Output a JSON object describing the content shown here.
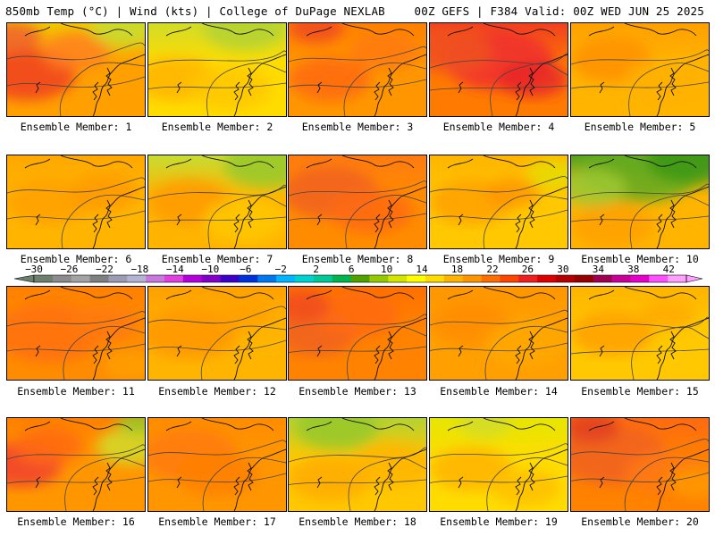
{
  "header": {
    "left": "850mb Temp (°C) | Wind (kts) | College of DuPage NEXLAB",
    "right": "00Z GEFS | F384 Valid: 00Z WED JUN 25 2025"
  },
  "colorbar": {
    "tick_labels": [
      "−30",
      "−26",
      "−22",
      "−18",
      "−14",
      "−10",
      "−6",
      "−2",
      "2",
      "6",
      "10",
      "14",
      "18",
      "22",
      "26",
      "30",
      "34",
      "38",
      "42"
    ],
    "colors": [
      "#6e7f6e",
      "#8c8c8c",
      "#a3a3a3",
      "#7f7f7f",
      "#9b9bb4",
      "#b4b4d2",
      "#c878dc",
      "#e040e0",
      "#b400dc",
      "#8200c8",
      "#3c00c8",
      "#0032dc",
      "#0078f0",
      "#00b4ff",
      "#00d2d2",
      "#00c896",
      "#00b450",
      "#50a000",
      "#96c800",
      "#d2e600",
      "#ffff00",
      "#ffdc00",
      "#ffb400",
      "#ff9600",
      "#ff6e00",
      "#ff4600",
      "#f01e1e",
      "#dc0000",
      "#b40000",
      "#960000",
      "#a00050",
      "#c80096",
      "#e600c8",
      "#ff50ff",
      "#ffa0ff"
    ]
  },
  "panels": [
    {
      "label": "Ensemble Member: 1",
      "base": "#ffa000",
      "north": "#f0c800",
      "hot": [
        [
          0.15,
          0.55,
          0.35,
          "#f04020"
        ],
        [
          0.05,
          0.15,
          0.2,
          "#f06030"
        ],
        [
          0.5,
          0.3,
          0.25,
          "#ff8020"
        ]
      ],
      "cool": [
        [
          0.85,
          0.05,
          0.25,
          "#c8dc32"
        ]
      ]
    },
    {
      "label": "Ensemble Member: 2",
      "base": "#ffdc00",
      "north": "#d2dc28",
      "hot": [
        [
          0.2,
          0.6,
          0.3,
          "#ffb400"
        ],
        [
          0.6,
          0.7,
          0.3,
          "#ffc800"
        ]
      ],
      "cool": [
        [
          0.7,
          0.05,
          0.3,
          "#b4d232"
        ]
      ]
    },
    {
      "label": "Ensemble Member: 3",
      "base": "#ff9600",
      "north": "#ff8000",
      "hot": [
        [
          0.3,
          0.6,
          0.3,
          "#ff6a10"
        ],
        [
          0.7,
          0.3,
          0.25,
          "#ff7a10"
        ],
        [
          0.2,
          0.05,
          0.2,
          "#f04a20"
        ]
      ],
      "cool": []
    },
    {
      "label": "Ensemble Member: 4",
      "base": "#ff7a00",
      "north": "#f04020",
      "hot": [
        [
          0.5,
          0.4,
          0.4,
          "#f03030"
        ],
        [
          0.75,
          0.6,
          0.25,
          "#e82828"
        ],
        [
          0.15,
          0.3,
          0.3,
          "#f05020"
        ]
      ],
      "cool": []
    },
    {
      "label": "Ensemble Member: 5",
      "base": "#ffb400",
      "north": "#ffa000",
      "hot": [
        [
          0.3,
          0.4,
          0.3,
          "#ff9000"
        ],
        [
          0.7,
          0.6,
          0.3,
          "#ffb000"
        ]
      ],
      "cool": []
    },
    {
      "label": "Ensemble Member: 6",
      "base": "#ffb400",
      "north": "#ffa800",
      "hot": [
        [
          0.3,
          0.5,
          0.3,
          "#ffa000"
        ],
        [
          0.7,
          0.4,
          0.25,
          "#ff9a00"
        ]
      ],
      "cool": []
    },
    {
      "label": "Ensemble Member: 7",
      "base": "#ffb400",
      "north": "#c8dc32",
      "hot": [
        [
          0.3,
          0.5,
          0.3,
          "#ff9a00"
        ],
        [
          0.7,
          0.7,
          0.3,
          "#ffc800"
        ]
      ],
      "cool": [
        [
          0.85,
          0.1,
          0.3,
          "#96c828"
        ]
      ]
    },
    {
      "label": "Ensemble Member: 8",
      "base": "#ff8c00",
      "north": "#ff7a10",
      "hot": [
        [
          0.3,
          0.4,
          0.35,
          "#f06020"
        ],
        [
          0.6,
          0.6,
          0.3,
          "#ff6a10"
        ]
      ],
      "cool": []
    },
    {
      "label": "Ensemble Member: 9",
      "base": "#ffc800",
      "north": "#ffb400",
      "hot": [
        [
          0.3,
          0.5,
          0.3,
          "#ffa000"
        ],
        [
          0.6,
          0.4,
          0.2,
          "#ff9600"
        ]
      ],
      "cool": [
        [
          0.9,
          0.2,
          0.2,
          "#e6dc00"
        ]
      ]
    },
    {
      "label": "Ensemble Member: 10",
      "base": "#ffb400",
      "north": "#50a020",
      "hot": [
        [
          0.3,
          0.75,
          0.3,
          "#ffa000"
        ]
      ],
      "cool": [
        [
          0.5,
          0.15,
          0.45,
          "#64aa1e"
        ],
        [
          0.15,
          0.35,
          0.25,
          "#a0c832"
        ],
        [
          0.85,
          0.05,
          0.3,
          "#3c9614"
        ]
      ]
    },
    {
      "label": "Ensemble Member: 11",
      "base": "#ff8c00",
      "north": "#ff8000",
      "hot": [
        [
          0.3,
          0.5,
          0.4,
          "#ff7010"
        ],
        [
          0.7,
          0.4,
          0.25,
          "#ff7a10"
        ]
      ],
      "cool": [
        [
          0.9,
          0.85,
          0.2,
          "#ffa000"
        ]
      ]
    },
    {
      "label": "Ensemble Member: 12",
      "base": "#ffb400",
      "north": "#ffa000",
      "hot": [
        [
          0.3,
          0.5,
          0.35,
          "#ff9600"
        ],
        [
          0.7,
          0.3,
          0.2,
          "#ffa000"
        ]
      ],
      "cool": []
    },
    {
      "label": "Ensemble Member: 13",
      "base": "#ff8200",
      "north": "#ff7000",
      "hot": [
        [
          0.2,
          0.5,
          0.3,
          "#f06020"
        ],
        [
          0.5,
          0.3,
          0.3,
          "#ff6a10"
        ],
        [
          0.1,
          0.2,
          0.2,
          "#f04a20"
        ]
      ],
      "cool": []
    },
    {
      "label": "Ensemble Member: 14",
      "base": "#ffa000",
      "north": "#ff9600",
      "hot": [
        [
          0.3,
          0.4,
          0.3,
          "#ff8c00"
        ],
        [
          0.7,
          0.6,
          0.3,
          "#ffa800"
        ]
      ],
      "cool": []
    },
    {
      "label": "Ensemble Member: 15",
      "base": "#ffc800",
      "north": "#ffb400",
      "hot": [
        [
          0.3,
          0.5,
          0.3,
          "#ffa000"
        ],
        [
          0.7,
          0.3,
          0.2,
          "#ffaa00"
        ]
      ],
      "cool": []
    },
    {
      "label": "Ensemble Member: 16",
      "base": "#ff9600",
      "north": "#ff8000",
      "hot": [
        [
          0.1,
          0.5,
          0.3,
          "#f04030"
        ],
        [
          0.3,
          0.3,
          0.25,
          "#ff6a10"
        ]
      ],
      "cool": [
        [
          0.9,
          0.3,
          0.25,
          "#d2dc28"
        ],
        [
          0.95,
          0.05,
          0.15,
          "#96c828"
        ]
      ]
    },
    {
      "label": "Ensemble Member: 17",
      "base": "#ff9600",
      "north": "#ff8c00",
      "hot": [
        [
          0.3,
          0.4,
          0.35,
          "#ff7a10"
        ],
        [
          0.5,
          0.6,
          0.3,
          "#ff8000"
        ]
      ],
      "cool": []
    },
    {
      "label": "Ensemble Member: 18",
      "base": "#ffc800",
      "north": "#b4d232",
      "hot": [
        [
          0.3,
          0.65,
          0.3,
          "#ffaa00"
        ],
        [
          0.75,
          0.5,
          0.3,
          "#ffb400"
        ]
      ],
      "cool": [
        [
          0.35,
          0.1,
          0.3,
          "#96c828"
        ]
      ]
    },
    {
      "label": "Ensemble Member: 19",
      "base": "#ffdc00",
      "north": "#e6e600",
      "hot": [
        [
          0.3,
          0.55,
          0.3,
          "#ffb400"
        ],
        [
          0.7,
          0.75,
          0.25,
          "#ffc000"
        ]
      ],
      "cool": [
        [
          0.4,
          0.05,
          0.2,
          "#d2dc28"
        ]
      ]
    },
    {
      "label": "Ensemble Member: 20",
      "base": "#ff8200",
      "north": "#ff6a10",
      "hot": [
        [
          0.3,
          0.4,
          0.4,
          "#f06020"
        ],
        [
          0.15,
          0.1,
          0.2,
          "#e04020"
        ],
        [
          0.7,
          0.6,
          0.3,
          "#ff7a10"
        ]
      ],
      "cool": [
        [
          0.9,
          0.7,
          0.2,
          "#ff9a00"
        ]
      ]
    }
  ]
}
